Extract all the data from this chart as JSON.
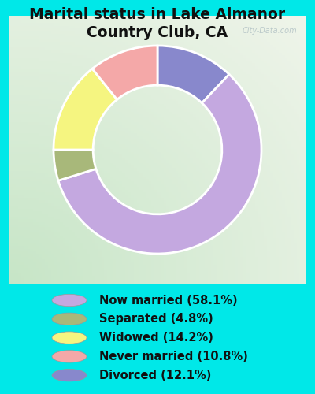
{
  "title": "Marital status in Lake Almanor\nCountry Club, CA",
  "slices": [
    58.1,
    4.8,
    14.2,
    10.8,
    12.1
  ],
  "labels": [
    "Now married (58.1%)",
    "Separated (4.8%)",
    "Widowed (14.2%)",
    "Never married (10.8%)",
    "Divorced (12.1%)"
  ],
  "colors": [
    "#c4a8e0",
    "#a8b87a",
    "#f5f580",
    "#f4a8a8",
    "#8888cc"
  ],
  "bg_color": "#00e8e8",
  "chart_bg": "#d0e8d0",
  "title_fontsize": 13.5,
  "legend_fontsize": 10.5,
  "watermark": "City-Data.com",
  "wedge_order": [
    4,
    0,
    1,
    2,
    3
  ],
  "donut_width": 0.38,
  "start_angle": 90
}
